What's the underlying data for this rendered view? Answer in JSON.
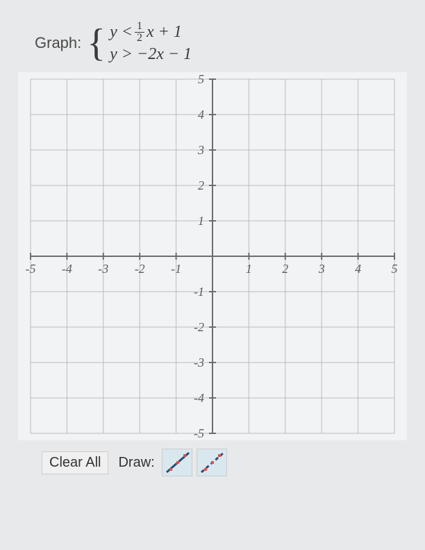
{
  "prompt": {
    "label": "Graph:",
    "equations": {
      "line1_pre": "y < ",
      "line1_frac_num": "1",
      "line1_frac_den": "2",
      "line1_post": "x + 1",
      "line2": "y > −2x − 1"
    }
  },
  "graph": {
    "type": "coordinate-grid",
    "xlim": [
      -5,
      5
    ],
    "ylim": [
      -5,
      5
    ],
    "xtick_step": 1,
    "ytick_step": 1,
    "x_tick_labels": [
      "-5",
      "-4",
      "-3",
      "-2",
      "-1",
      "",
      "1",
      "2",
      "3",
      "4",
      "5"
    ],
    "y_tick_labels": [
      "5",
      "4",
      "3",
      "2",
      "1",
      "",
      "-1",
      "-2",
      "-3",
      "-4",
      "-5"
    ],
    "background_color": "#f2f3f4",
    "grid_color": "#b8bcbf",
    "axis_color": "#6a6e71",
    "tick_font_size": 18,
    "tick_font_family": "Georgia, serif",
    "tick_font_style": "italic",
    "tick_color": "#5a5e60"
  },
  "toolbar": {
    "clear_label": "Clear All",
    "draw_label": "Draw:",
    "tools": [
      {
        "name": "solid-line-tool",
        "bg": "#d9e8ee",
        "line_color": "#2b4a7a",
        "dashed": false,
        "dots": [
          [
            12,
            30
          ],
          [
            22,
            20
          ],
          [
            32,
            10
          ]
        ],
        "dot_color": "#d9534f"
      },
      {
        "name": "dashed-line-tool",
        "bg": "#d9e8ee",
        "line_color": "#2b4a7a",
        "dashed": true,
        "dots": [
          [
            12,
            30
          ],
          [
            22,
            20
          ],
          [
            32,
            10
          ]
        ],
        "dot_color": "#d9534f"
      }
    ]
  }
}
